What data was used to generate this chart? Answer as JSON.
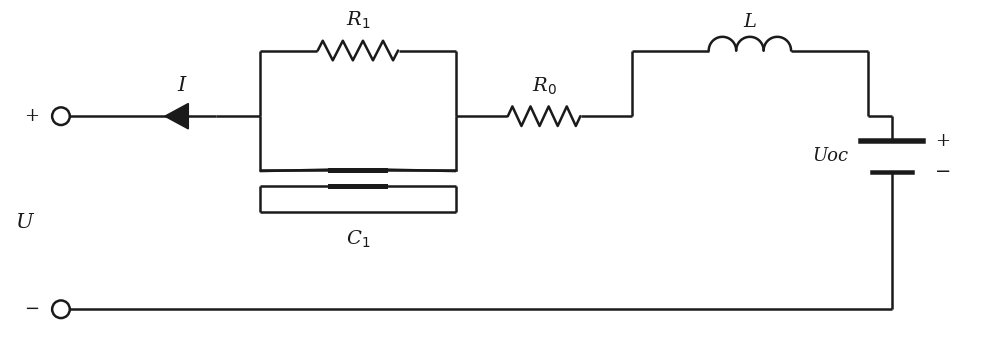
{
  "line_color": "#1a1a1a",
  "line_width": 1.8,
  "background_color": "#ffffff",
  "figsize": [
    10.0,
    3.5
  ],
  "dpi": 100,
  "xlim": [
    0,
    10
  ],
  "ylim": [
    0,
    3.5
  ]
}
